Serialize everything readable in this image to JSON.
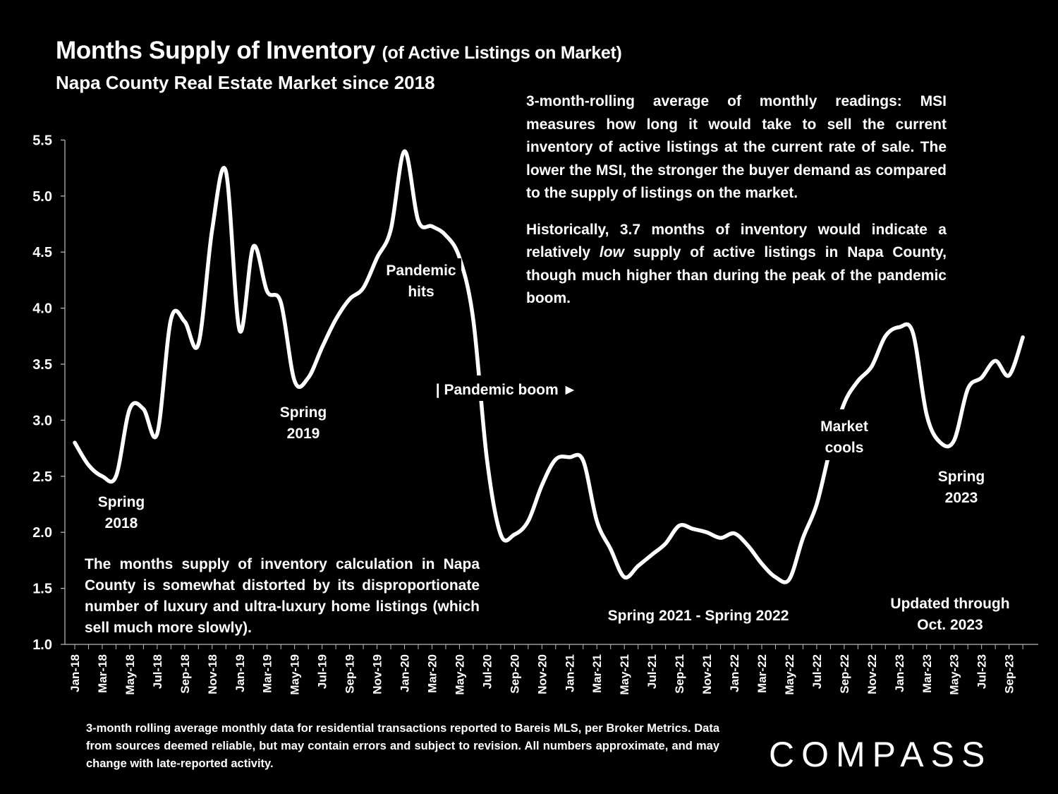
{
  "header": {
    "title_main": "Months Supply of Inventory",
    "title_paren": "(of Active Listings on Market)",
    "subtitle": "Napa County Real Estate Market since 2018"
  },
  "notes": {
    "top_p1": "3-month-rolling average of monthly readings: MSI measures how long it would take to sell the current inventory of active listings at the current rate of sale. The lower the MSI, the stronger the buyer demand as compared to the supply of listings on the market.",
    "top_p2_a": "Historically, 3.7 months of inventory would indicate a relatively ",
    "top_p2_em": "low",
    "top_p2_b": " supply of active listings in Napa County, though much higher than during the peak of the pandemic boom.",
    "left": "The months supply of inventory calculation in Napa County is somewhat distorted by its disproportionate number of luxury and ultra-luxury home listings (which sell much more slowly)."
  },
  "footer": "3-month rolling average monthly data for residential transactions reported to Bareis MLS, per Broker Metrics. Data from sources deemed reliable, but may contain errors and subject to revision. All numbers approximate, and may change with late-reported activity.",
  "logo": "COMPASS",
  "chart_data": {
    "type": "line",
    "title": "Months Supply of Inventory (of Active Listings on Market)",
    "xlabel": "",
    "ylabel": "",
    "ylim": [
      1.0,
      5.5
    ],
    "yticks": [
      "1.0",
      "1.5",
      "2.0",
      "2.5",
      "3.0",
      "3.5",
      "4.0",
      "4.5",
      "5.0",
      "5.5"
    ],
    "x": [
      "Jan-18",
      "Feb-18",
      "Mar-18",
      "Apr-18",
      "May-18",
      "Jun-18",
      "Jul-18",
      "Aug-18",
      "Sep-18",
      "Oct-18",
      "Nov-18",
      "Dec-18",
      "Jan-19",
      "Feb-19",
      "Mar-19",
      "Apr-19",
      "May-19",
      "Jun-19",
      "Jul-19",
      "Aug-19",
      "Sep-19",
      "Oct-19",
      "Nov-19",
      "Dec-19",
      "Jan-20",
      "Feb-20",
      "Mar-20",
      "Apr-20",
      "May-20",
      "Jun-20",
      "Jul-20",
      "Aug-20",
      "Sep-20",
      "Oct-20",
      "Nov-20",
      "Dec-20",
      "Jan-21",
      "Feb-21",
      "Mar-21",
      "Apr-21",
      "May-21",
      "Jun-21",
      "Jul-21",
      "Aug-21",
      "Sep-21",
      "Oct-21",
      "Nov-21",
      "Dec-21",
      "Jan-22",
      "Feb-22",
      "Mar-22",
      "Apr-22",
      "May-22",
      "Jun-22",
      "Jul-22",
      "Aug-22",
      "Sep-22",
      "Oct-22",
      "Nov-22",
      "Dec-22",
      "Jan-23",
      "Feb-23",
      "Mar-23",
      "Apr-23",
      "May-23",
      "Jun-23",
      "Jul-23",
      "Aug-23",
      "Sep-23",
      "Oct-23"
    ],
    "xtick_labels": [
      "Jan-18",
      "Mar-18",
      "May-18",
      "Jul-18",
      "Sep-18",
      "Nov-18",
      "Jan-19",
      "Mar-19",
      "May-19",
      "Jul-19",
      "Sep-19",
      "Nov-19",
      "Jan-20",
      "Mar-20",
      "May-20",
      "Jul-20",
      "Sep-20",
      "Nov-20",
      "Jan-21",
      "Mar-21",
      "May-21",
      "Jul-21",
      "Sep-21",
      "Nov-21",
      "Jan-22",
      "Mar-22",
      "May-22",
      "Jul-22",
      "Sep-22",
      "Nov-22",
      "Jan-23",
      "Mar-23",
      "May-23",
      "Jul-23",
      "Sep-23"
    ],
    "series": [
      {
        "name": "Months Supply of Inventory",
        "values": [
          2.8,
          2.6,
          2.5,
          2.5,
          3.1,
          3.1,
          2.88,
          3.9,
          3.88,
          3.68,
          4.7,
          5.22,
          3.8,
          4.55,
          4.15,
          4.05,
          3.35,
          3.38,
          3.65,
          3.9,
          4.08,
          4.18,
          4.45,
          4.7,
          5.4,
          4.78,
          4.73,
          4.65,
          4.45,
          3.9,
          2.65,
          1.98,
          1.98,
          2.1,
          2.42,
          2.65,
          2.67,
          2.64,
          2.1,
          1.85,
          1.6,
          1.7,
          1.8,
          1.9,
          2.06,
          2.03,
          2.0,
          1.95,
          1.99,
          1.88,
          1.72,
          1.6,
          1.58,
          1.95,
          2.25,
          2.75,
          3.15,
          3.35,
          3.48,
          3.75,
          3.83,
          3.78,
          3.05,
          2.8,
          2.82,
          3.28,
          3.38,
          3.53,
          3.4,
          3.74
        ]
      }
    ],
    "annotations": [
      {
        "text": "Spring 2018",
        "lines": [
          "Spring",
          "2018"
        ]
      },
      {
        "text": "Spring 2019",
        "lines": [
          "Spring",
          "2019"
        ]
      },
      {
        "text": "Pandemic hits",
        "lines": [
          "Pandemic",
          "hits"
        ]
      },
      {
        "text": "| Pandemic boom ►",
        "lines": [
          "| Pandemic boom ►"
        ]
      },
      {
        "text": "Market cools",
        "lines": [
          "Market",
          "cools"
        ]
      },
      {
        "text": "Spring 2023",
        "lines": [
          "Spring",
          "2023"
        ]
      },
      {
        "text": "Spring 2021 - Spring 2022",
        "lines": [
          "Spring 2021 - Spring 2022"
        ]
      },
      {
        "text": "Updated through Oct. 2023",
        "lines": [
          "Updated through",
          "Oct. 2023"
        ]
      }
    ]
  },
  "colors": {
    "background": "#000000",
    "foreground": "#ffffff"
  }
}
